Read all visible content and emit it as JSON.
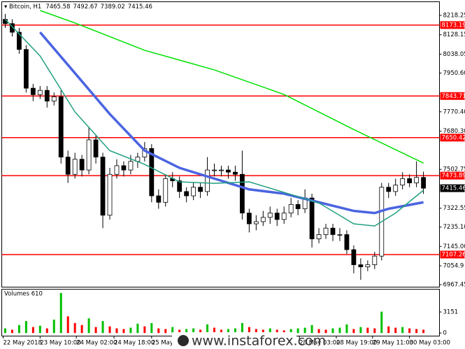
{
  "chart_data": {
    "type": "candlestick",
    "symbol": "Bitcoin, H1",
    "xlim": [
      -0.5,
      62.3
    ],
    "ylim": [
      6957.7,
      8250.7
    ],
    "yticks": [
      8218.25,
      8128.15,
      8038.05,
      {
        "value": 7950.6,
        "label": "7950.60"
      },
      {
        "value": 7770.4,
        "label": "7770.40"
      },
      {
        "value": 7680.3,
        "label": "7680.30"
      },
      7502.75,
      7322.55,
      {
        "value": 7235.1,
        "label": "7235.10"
      },
      {
        "value": 7145,
        "label": "7145.00"
      },
      7054.9,
      6967.45
    ],
    "xticks": [
      {
        "value": -0.3,
        "label": "22 May 2018"
      },
      {
        "value": 5,
        "label": "23 May 10:00"
      },
      {
        "value": 10.2,
        "label": "24 May 02:00"
      },
      {
        "value": 15.6,
        "label": "24 May 18:00"
      },
      {
        "value": 21,
        "label": "25 May"
      },
      {
        "value": 42.2,
        "label": "28 May 03:00"
      },
      {
        "value": 47.5,
        "label": "28 May 19:00"
      },
      {
        "value": 52.7,
        "label": "29 May 11:00"
      },
      {
        "value": 58,
        "label": "30 May 03:00"
      }
    ],
    "open": [
      8200,
      8180,
      8140,
      8060,
      7880,
      7850,
      7870,
      7820,
      7840,
      7560,
      7480,
      7550,
      7500,
      7640,
      7560,
      7290,
      7480,
      7520,
      7500,
      7540,
      7560,
      7600,
      7380,
      7350,
      7460,
      7450,
      7400,
      7380,
      7420,
      7400,
      7500,
      7500,
      7500,
      7490,
      7480,
      7300,
      7250,
      7260,
      7280,
      7300,
      7270,
      7300,
      7340,
      7320,
      7370,
      7180,
      7200,
      7230,
      7200,
      7200,
      7130,
      7060,
      7050,
      7060,
      7100,
      7420,
      7400,
      7430,
      7460,
      7440,
      7465.58
    ],
    "high": [
      8225,
      8200,
      8160,
      8080,
      7900,
      7890,
      7890,
      7860,
      7870,
      7590,
      7580,
      7570,
      7700,
      7660,
      7580,
      7510,
      7550,
      7540,
      7570,
      7580,
      7630,
      7620,
      7410,
      7480,
      7490,
      7470,
      7420,
      7440,
      7440,
      7560,
      7530,
      7520,
      7520,
      7520,
      7590,
      7320,
      7290,
      7310,
      7330,
      7320,
      7330,
      7370,
      7360,
      7410,
      7390,
      7230,
      7250,
      7250,
      7230,
      7220,
      7150,
      7090,
      7080,
      7120,
      7440,
      7440,
      7460,
      7490,
      7480,
      7540,
      7492.67
    ],
    "low": [
      8160,
      8120,
      8040,
      7860,
      7820,
      7830,
      7790,
      7800,
      7530,
      7440,
      7460,
      7470,
      7480,
      7530,
      7230,
      7270,
      7460,
      7470,
      7480,
      7510,
      7540,
      7350,
      7320,
      7330,
      7420,
      7370,
      7350,
      7360,
      7370,
      7380,
      7470,
      7470,
      7460,
      7450,
      7270,
      7210,
      7220,
      7240,
      7250,
      7240,
      7250,
      7280,
      7290,
      7300,
      7140,
      7160,
      7180,
      7170,
      7170,
      7110,
      7020,
      6990,
      7030,
      7040,
      7080,
      7370,
      7380,
      7410,
      7420,
      7420,
      7389.02
    ],
    "close": [
      8180,
      8140,
      8060,
      7880,
      7850,
      7870,
      7820,
      7840,
      7560,
      7480,
      7550,
      7500,
      7640,
      7560,
      7290,
      7480,
      7520,
      7500,
      7540,
      7560,
      7600,
      7380,
      7350,
      7460,
      7450,
      7400,
      7380,
      7420,
      7400,
      7500,
      7500,
      7500,
      7490,
      7480,
      7300,
      7250,
      7260,
      7280,
      7300,
      7270,
      7300,
      7340,
      7320,
      7370,
      7180,
      7200,
      7230,
      7200,
      7200,
      7130,
      7060,
      7050,
      7060,
      7100,
      7420,
      7400,
      7430,
      7460,
      7440,
      7465.58,
      7415.46
    ],
    "bull_color": "#ffffff",
    "bear_color": "#000000",
    "levels": {
      "color": "#ff0000",
      "values": [
        8173.19,
        7843.71,
        7650.42,
        7473.89,
        7107.26
      ]
    },
    "lines": [
      {
        "color": "#00e000",
        "width": 1.5,
        "x": [
          5,
          10,
          20,
          30,
          40,
          50,
          60
        ],
        "values": [
          8241,
          8183,
          8056,
          7965,
          7851,
          7688,
          7532
        ]
      },
      {
        "color": "#4a64e0",
        "width": 3.5,
        "x": [
          5,
          10,
          15,
          20,
          25,
          30,
          35,
          40,
          45,
          50,
          53,
          55,
          60
        ],
        "values": [
          8140,
          7950,
          7760,
          7590,
          7510,
          7460,
          7410,
          7390,
          7350,
          7310,
          7300,
          7320,
          7350
        ]
      },
      {
        "color": "#20a080",
        "width": 1.5,
        "x": [
          0,
          5,
          10,
          15,
          20,
          25,
          30,
          35,
          40,
          45,
          50,
          53,
          56,
          60
        ],
        "values": [
          8200,
          8030,
          7770,
          7590,
          7526,
          7445,
          7438,
          7445,
          7396,
          7347,
          7250,
          7240,
          7300,
          7406
        ]
      }
    ],
    "volume": {
      "title": "Volumes 610",
      "ylim": [
        -400,
        6300
      ],
      "yticks": [
        3151,
        0
      ],
      "up_color": "#00c000",
      "down_color": "#ff0000",
      "values": [
        700,
        500,
        1200,
        1800,
        900,
        1100,
        700,
        2000,
        6000,
        2500,
        1500,
        1200,
        2200,
        900,
        1800,
        1000,
        700,
        600,
        800,
        1400,
        1000,
        1500,
        700,
        600,
        900,
        500,
        600,
        700,
        500,
        1300,
        800,
        500,
        600,
        700,
        1500,
        900,
        600,
        500,
        700,
        500,
        400,
        600,
        700,
        800,
        1200,
        600,
        500,
        700,
        800,
        1300,
        600,
        900,
        800,
        700,
        3200,
        1000,
        800,
        900,
        700,
        600,
        500
      ]
    },
    "watermark": "www.instaforex.com"
  }
}
